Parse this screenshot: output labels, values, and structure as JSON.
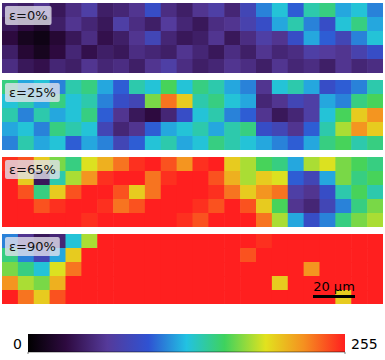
{
  "chart_data": {
    "type": "heatmap",
    "tick_labels": false,
    "panels": [
      {
        "title": "ε=0%",
        "values": [
          [
            50,
            45,
            60,
            40,
            55,
            70,
            45,
            50,
            60,
            90,
            55,
            45,
            60,
            70,
            50,
            80,
            110,
            130,
            100,
            140,
            150,
            120,
            130,
            110
          ],
          [
            40,
            30,
            20,
            45,
            60,
            50,
            40,
            70,
            55,
            45,
            65,
            50,
            40,
            55,
            60,
            75,
            90,
            120,
            140,
            110,
            90,
            130,
            150,
            120
          ],
          [
            30,
            15,
            10,
            25,
            40,
            55,
            35,
            45,
            60,
            80,
            50,
            40,
            45,
            60,
            40,
            55,
            70,
            60,
            90,
            120,
            100,
            80,
            110,
            130
          ],
          [
            45,
            25,
            15,
            30,
            50,
            35,
            45,
            40,
            55,
            50,
            45,
            60,
            50,
            40,
            55,
            45,
            60,
            50,
            55,
            70,
            65,
            60,
            75,
            90
          ],
          [
            55,
            40,
            35,
            50,
            45,
            60,
            50,
            55,
            45,
            60,
            70,
            55,
            45,
            50,
            60,
            55,
            45,
            60,
            50,
            55,
            45,
            60,
            50,
            55
          ]
        ]
      },
      {
        "title": "ε=25%",
        "values": [
          [
            150,
            120,
            130,
            110,
            140,
            150,
            120,
            100,
            140,
            130,
            160,
            130,
            150,
            140,
            120,
            110,
            60,
            130,
            140,
            120,
            90,
            100,
            110,
            140
          ],
          [
            130,
            140,
            120,
            150,
            130,
            140,
            110,
            90,
            80,
            170,
            230,
            200,
            140,
            150,
            130,
            120,
            50,
            60,
            80,
            70,
            120,
            110,
            150,
            160
          ],
          [
            140,
            110,
            140,
            120,
            130,
            150,
            100,
            60,
            40,
            30,
            50,
            90,
            130,
            140,
            110,
            100,
            60,
            40,
            50,
            70,
            130,
            160,
            200,
            220
          ],
          [
            120,
            130,
            110,
            150,
            140,
            130,
            80,
            50,
            60,
            100,
            120,
            130,
            140,
            120,
            140,
            150,
            90,
            80,
            60,
            100,
            140,
            180,
            220,
            200
          ],
          [
            110,
            140,
            120,
            130,
            100,
            120,
            110,
            80,
            100,
            130,
            140,
            120,
            130,
            150,
            140,
            130,
            120,
            110,
            100,
            120,
            150,
            160,
            140,
            150
          ]
        ]
      },
      {
        "title": "ε=65%",
        "values": [
          [
            250,
            240,
            200,
            170,
            150,
            190,
            210,
            230,
            250,
            255,
            240,
            220,
            250,
            255,
            200,
            180,
            160,
            150,
            120,
            180,
            190,
            170,
            160,
            150
          ],
          [
            255,
            200,
            40,
            140,
            180,
            220,
            250,
            255,
            255,
            230,
            250,
            255,
            255,
            240,
            210,
            180,
            200,
            190,
            100,
            80,
            120,
            170,
            150,
            160
          ],
          [
            255,
            240,
            150,
            200,
            240,
            255,
            255,
            240,
            200,
            230,
            255,
            255,
            255,
            250,
            230,
            200,
            220,
            230,
            70,
            60,
            90,
            140,
            160,
            140
          ],
          [
            255,
            255,
            240,
            250,
            255,
            255,
            250,
            230,
            240,
            255,
            255,
            255,
            250,
            240,
            255,
            240,
            200,
            160,
            60,
            50,
            80,
            110,
            150,
            170
          ],
          [
            255,
            255,
            255,
            255,
            255,
            250,
            255,
            255,
            255,
            255,
            255,
            250,
            240,
            255,
            255,
            255,
            230,
            180,
            120,
            90,
            110,
            150,
            170,
            180
          ]
        ]
      },
      {
        "title": "ε=90%",
        "values": [
          [
            110,
            60,
            40,
            50,
            130,
            180,
            255,
            255,
            255,
            255,
            255,
            255,
            255,
            255,
            255,
            255,
            250,
            255,
            255,
            255,
            255,
            255,
            255,
            255
          ],
          [
            150,
            110,
            80,
            120,
            200,
            255,
            255,
            255,
            255,
            255,
            255,
            255,
            255,
            255,
            255,
            240,
            255,
            255,
            255,
            255,
            255,
            255,
            255,
            255
          ],
          [
            170,
            150,
            130,
            190,
            230,
            255,
            255,
            255,
            255,
            255,
            255,
            255,
            255,
            255,
            255,
            255,
            255,
            255,
            255,
            220,
            255,
            255,
            255,
            255
          ],
          [
            220,
            180,
            170,
            210,
            255,
            255,
            255,
            255,
            255,
            255,
            255,
            255,
            255,
            255,
            255,
            255,
            255,
            200,
            255,
            255,
            255,
            255,
            255,
            255
          ],
          [
            255,
            230,
            200,
            240,
            255,
            255,
            255,
            255,
            255,
            255,
            255,
            255,
            255,
            255,
            255,
            255,
            255,
            255,
            255,
            255,
            255,
            200,
            255,
            255
          ]
        ]
      }
    ],
    "colorbar": {
      "range": [
        0,
        255
      ],
      "ticks": [
        0,
        255
      ]
    },
    "annotations": [
      "20 μm"
    ]
  }
}
